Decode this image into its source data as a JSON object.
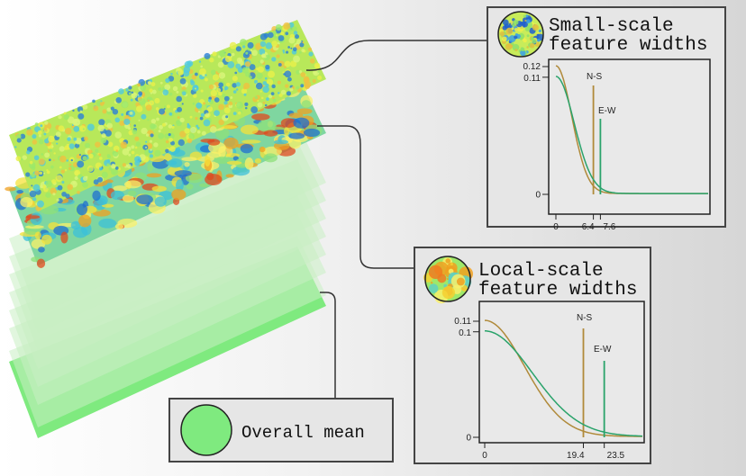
{
  "panels": {
    "small": {
      "title_line1": "Small-scale",
      "title_line2": "feature widths"
    },
    "local": {
      "title_line1": "Local-scale",
      "title_line2": "feature widths"
    },
    "mean": {
      "label": "Overall mean"
    }
  },
  "colors": {
    "ns": "#b08a3a",
    "ew": "#2aa36b",
    "mean_green": "#7fea7f",
    "layer_green": "#c9efc3"
  },
  "chart_data": [
    {
      "type": "line",
      "title": "Small-scale feature widths",
      "xlim": [
        0,
        26
      ],
      "ylim": [
        0,
        0.125
      ],
      "yticks": [
        {
          "v": 0.12,
          "label": "0.12"
        },
        {
          "v": 0.11,
          "label": "0.11"
        },
        {
          "v": 0,
          "label": "0"
        }
      ],
      "xticks": [
        {
          "v": 0,
          "label": "0"
        },
        {
          "v": 6.4,
          "label": "6.4"
        },
        {
          "v": 7.6,
          "label": "7.6"
        }
      ],
      "series": [
        {
          "name": "N-S",
          "peak": 0.12,
          "sigma": 2.7,
          "marker": 6.4
        },
        {
          "name": "E-W",
          "peak": 0.11,
          "sigma": 3.1,
          "marker": 7.6
        }
      ]
    },
    {
      "type": "line",
      "title": "Local-scale feature widths",
      "xlim": [
        0,
        31
      ],
      "ylim": [
        0,
        0.125
      ],
      "yticks": [
        {
          "v": 0.11,
          "label": "0.11"
        },
        {
          "v": 0.1,
          "label": "0.1"
        },
        {
          "v": 0,
          "label": "0"
        }
      ],
      "xticks": [
        {
          "v": 0,
          "label": "0"
        },
        {
          "v": 19.4,
          "label": "19.4"
        },
        {
          "v": 23.5,
          "label": "23.5"
        }
      ],
      "series": [
        {
          "name": "N-S",
          "peak": 0.11,
          "sigma": 7.8,
          "marker": 19.4
        },
        {
          "name": "E-W",
          "peak": 0.1,
          "sigma": 9.3,
          "marker": 23.5
        }
      ]
    }
  ]
}
